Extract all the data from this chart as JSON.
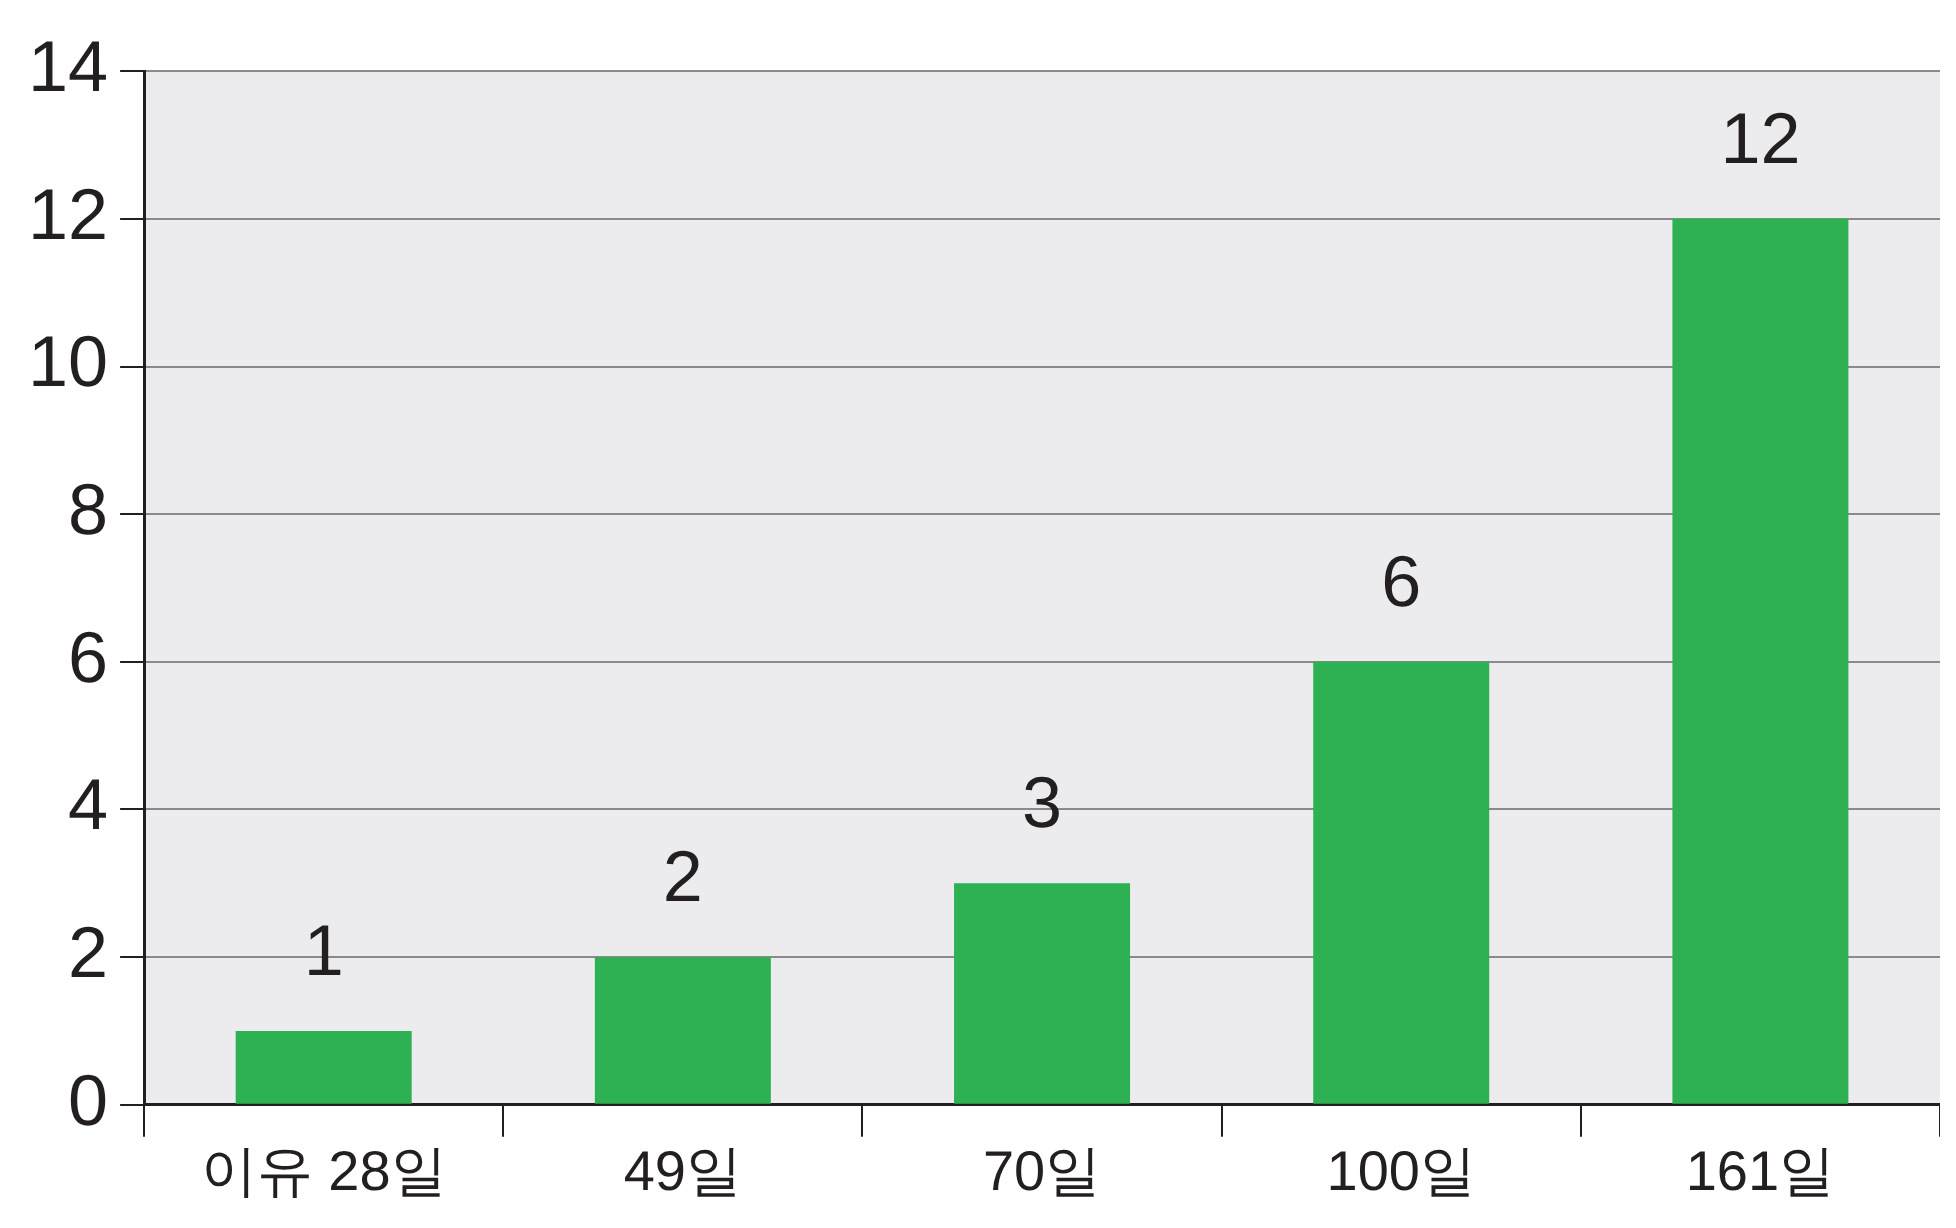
{
  "chart_data": {
    "type": "bar",
    "categories": [
      "이유 28일",
      "49일",
      "70일",
      "100일",
      "161일"
    ],
    "values": [
      1,
      2,
      3,
      6,
      12
    ],
    "color": "#2db153",
    "ylim": [
      0,
      14
    ],
    "yticks": [
      0,
      2,
      4,
      6,
      8,
      10,
      12,
      14
    ],
    "grid": "y",
    "data_labels": true
  }
}
